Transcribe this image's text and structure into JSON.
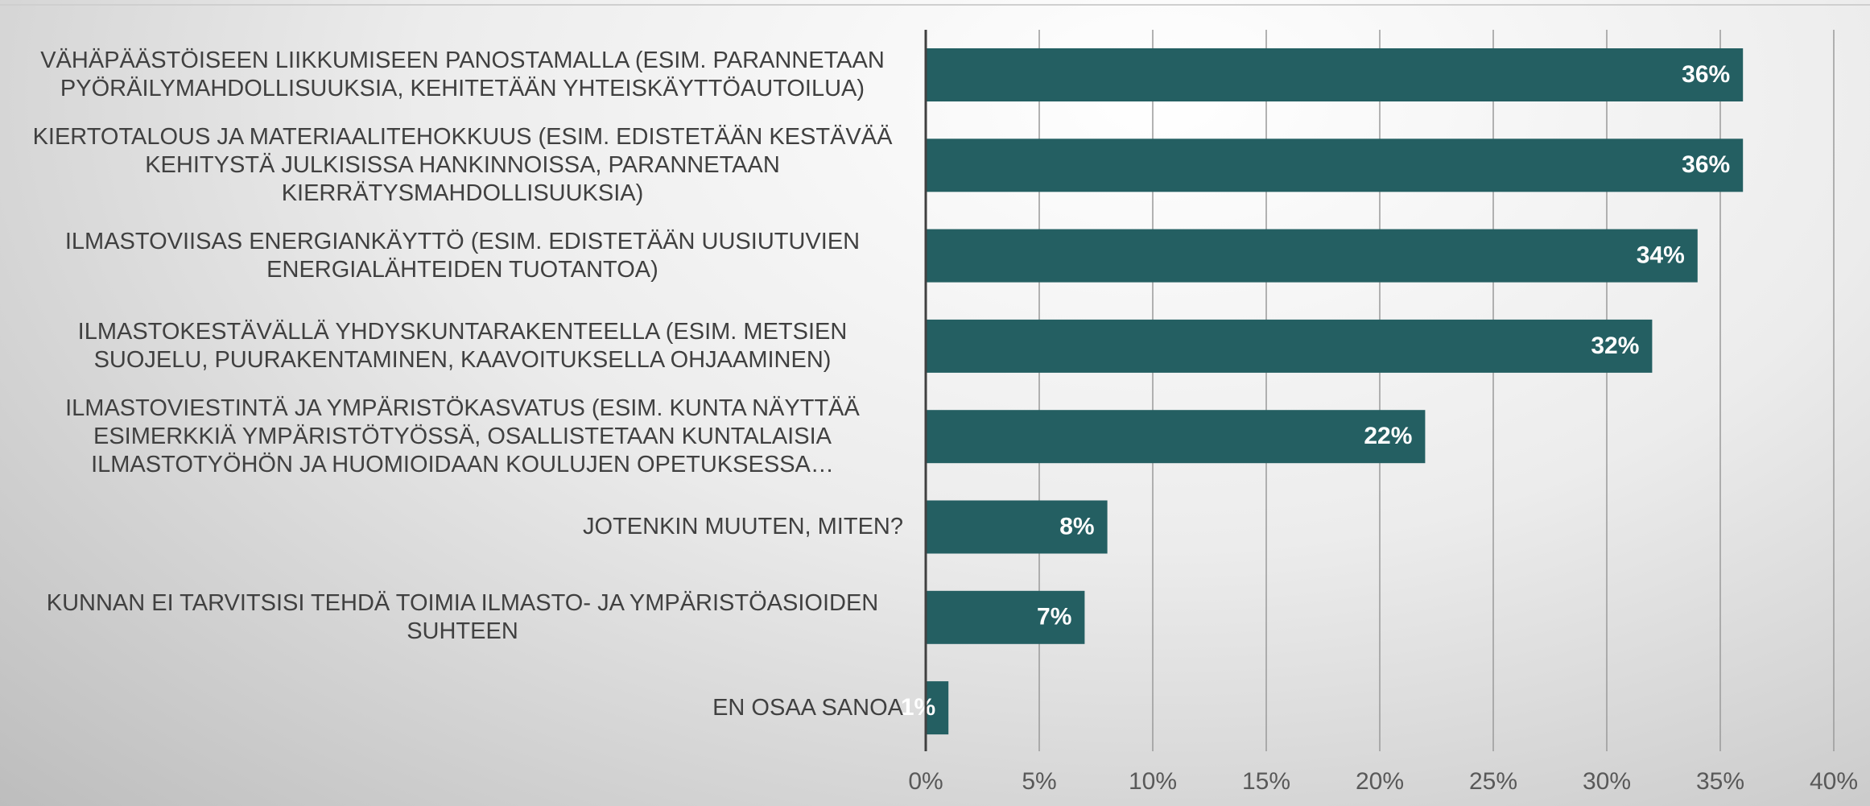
{
  "chart_data": {
    "type": "barh",
    "categories": [
      "VÄHÄPÄÄSTÖISEEN LIIKKUMISEEN PANOSTAMALLA (ESIM. PARANNETAAN PYÖRÄILYMAHDOLLISUUKSIA, KEHITETÄÄN YHTEISKÄYTTÖAUTOILUA)",
      "KIERTOTALOUS JA MATERIAALITEHOKKUUS (ESIM. EDISTETÄÄN KESTÄVÄÄ KEHITYSTÄ JULKISISSA HANKINNOISSA, PARANNETAAN KIERRÄTYSMAHDOLLISUUKSIA)",
      "ILMASTOVIISAS ENERGIANKÄYTTÖ (ESIM. EDISTETÄÄN UUSIUTUVIEN ENERGIALÄHTEIDEN TUOTANTOA)",
      "ILMASTOKESTÄVÄLLÄ YHDYSKUNTARAKENTEELLA (ESIM. METSIEN SUOJELU, PUURAKENTAMINEN, KAAVOITUKSELLA OHJAAMINEN)",
      "ILMASTOVIESTINTÄ JA YMPÄRISTÖKASVATUS (ESIM. KUNTA NÄYTTÄÄ ESIMERKKIÄ YMPÄRISTÖTYÖSSÄ, OSALLISTETAAN KUNTALAISIA ILMASTOTYÖHÖN JA HUOMIOIDAAN KOULUJEN OPETUKSESSA…",
      "JOTENKIN MUUTEN, MITEN?",
      "KUNNAN EI TARVITSISI TEHDÄ TOIMIA ILMASTO- JA YMPÄRISTÖASIOIDEN SUHTEEN",
      "EN OSAA SANOA"
    ],
    "values": [
      36,
      36,
      34,
      32,
      22,
      8,
      7,
      1
    ],
    "value_labels": [
      "36%",
      "36%",
      "34%",
      "32%",
      "22%",
      "8%",
      "7%",
      "1%"
    ],
    "color": "#245f62",
    "xlim": [
      0,
      40
    ],
    "xticks": [
      {
        "value": 0,
        "label": "0%"
      },
      {
        "value": 5,
        "label": "5%"
      },
      {
        "value": 10,
        "label": "10%"
      },
      {
        "value": 15,
        "label": "15%"
      },
      {
        "value": 20,
        "label": "20%"
      },
      {
        "value": 25,
        "label": "25%"
      },
      {
        "value": 30,
        "label": "30%"
      },
      {
        "value": 35,
        "label": "35%"
      },
      {
        "value": 40,
        "label": "40%"
      }
    ],
    "grid": true
  }
}
